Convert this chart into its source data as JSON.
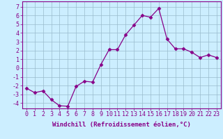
{
  "xlabel": "Windchill (Refroidissement éolien,°C)",
  "x": [
    0,
    1,
    2,
    3,
    4,
    5,
    6,
    7,
    8,
    9,
    10,
    11,
    12,
    13,
    14,
    15,
    16,
    17,
    18,
    19,
    20,
    21,
    22,
    23
  ],
  "y": [
    -2.3,
    -2.8,
    -2.6,
    -3.6,
    -4.3,
    -4.35,
    -2.1,
    -1.5,
    -1.6,
    0.4,
    2.1,
    2.1,
    3.8,
    4.9,
    6.0,
    5.8,
    6.8,
    3.3,
    2.2,
    2.2,
    1.8,
    1.2,
    1.5,
    1.2
  ],
  "line_color": "#880088",
  "marker": "D",
  "marker_size": 2.5,
  "bg_color": "#cceeff",
  "grid_color": "#99bbcc",
  "ylim": [
    -4.6,
    7.6
  ],
  "xlim": [
    -0.5,
    23.5
  ],
  "yticks": [
    -4,
    -3,
    -2,
    -1,
    0,
    1,
    2,
    3,
    4,
    5,
    6,
    7
  ],
  "xticks": [
    0,
    1,
    2,
    3,
    4,
    5,
    6,
    7,
    8,
    9,
    10,
    11,
    12,
    13,
    14,
    15,
    16,
    17,
    18,
    19,
    20,
    21,
    22,
    23
  ],
  "label_fontsize": 6.5,
  "tick_fontsize": 6.0
}
